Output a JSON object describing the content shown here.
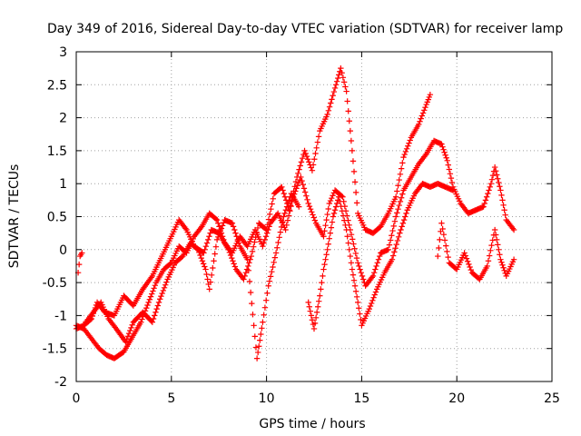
{
  "chart_data": {
    "type": "scatter",
    "title": "Day 349 of 2016, Sidereal Day-to-day VTEC variation (SDTVAR) for receiver lamp",
    "xlabel": "GPS time / hours",
    "ylabel": "SDTVAR / TECUs",
    "xlim": [
      0,
      25
    ],
    "ylim": [
      -2,
      3
    ],
    "xticks": [
      0,
      5,
      10,
      15,
      20,
      25
    ],
    "yticks": [
      -2,
      -1.5,
      -1,
      -0.5,
      0,
      0.5,
      1,
      1.5,
      2,
      2.5,
      3
    ],
    "grid": true,
    "marker": "+",
    "series_color": "#ff0000",
    "series": [
      {
        "name": "s1",
        "points": [
          [
            0.0,
            -1.2
          ],
          [
            0.4,
            -1.15
          ],
          [
            0.8,
            -1.05
          ],
          [
            1.1,
            -0.8
          ],
          [
            1.5,
            -0.95
          ],
          [
            2.0,
            -1.0
          ],
          [
            2.5,
            -0.7
          ],
          [
            3.0,
            -0.85
          ],
          [
            3.5,
            -0.6
          ],
          [
            4.0,
            -0.4
          ],
          [
            4.5,
            -0.1
          ],
          [
            5.0,
            0.2
          ],
          [
            5.4,
            0.45
          ],
          [
            5.8,
            0.3
          ],
          [
            6.2,
            0.05
          ],
          [
            6.7,
            -0.05
          ],
          [
            7.1,
            0.3
          ],
          [
            7.5,
            0.25
          ],
          [
            8.0,
            0.0
          ],
          [
            8.4,
            -0.3
          ],
          [
            8.8,
            -0.45
          ],
          [
            9.2,
            -0.1
          ],
          [
            9.6,
            0.4
          ],
          [
            10.0,
            0.3
          ],
          [
            10.4,
            0.85
          ],
          [
            10.8,
            0.95
          ],
          [
            11.2,
            0.6
          ],
          [
            11.6,
            1.1
          ],
          [
            12.0,
            1.5
          ],
          [
            12.4,
            1.2
          ],
          [
            12.8,
            1.8
          ],
          [
            13.2,
            2.05
          ],
          [
            13.6,
            2.45
          ],
          [
            13.9,
            2.75
          ],
          [
            14.2,
            2.4
          ],
          [
            14.5,
            1.5
          ],
          [
            14.8,
            0.55
          ],
          [
            15.2,
            0.3
          ],
          [
            15.6,
            0.25
          ],
          [
            16.0,
            0.35
          ],
          [
            16.4,
            0.55
          ],
          [
            16.8,
            0.8
          ],
          [
            17.2,
            1.4
          ],
          [
            17.6,
            1.7
          ],
          [
            18.0,
            1.9
          ],
          [
            18.4,
            2.2
          ],
          [
            18.6,
            2.35
          ]
        ]
      },
      {
        "name": "s2",
        "points": [
          [
            0.0,
            -1.15
          ],
          [
            0.4,
            -1.2
          ],
          [
            0.8,
            -1.35
          ],
          [
            1.2,
            -1.5
          ],
          [
            1.6,
            -1.6
          ],
          [
            2.0,
            -1.65
          ],
          [
            2.5,
            -1.55
          ],
          [
            3.0,
            -1.3
          ],
          [
            3.4,
            -1.1
          ],
          [
            3.8,
            -0.8
          ],
          [
            4.2,
            -0.5
          ],
          [
            4.6,
            -0.3
          ],
          [
            5.0,
            -0.2
          ],
          [
            5.4,
            0.05
          ],
          [
            5.8,
            -0.05
          ],
          [
            6.2,
            0.2
          ],
          [
            6.6,
            0.35
          ],
          [
            7.0,
            0.55
          ],
          [
            7.4,
            0.45
          ],
          [
            7.8,
            0.1
          ],
          [
            8.2,
            -0.05
          ],
          [
            8.6,
            0.2
          ],
          [
            9.0,
            0.05
          ],
          [
            9.4,
            0.3
          ],
          [
            9.8,
            0.05
          ],
          [
            10.2,
            0.4
          ],
          [
            10.6,
            0.55
          ],
          [
            11.0,
            0.3
          ],
          [
            11.4,
            0.8
          ],
          [
            11.8,
            1.1
          ],
          [
            12.2,
            0.7
          ],
          [
            12.6,
            0.4
          ],
          [
            13.0,
            0.2
          ],
          [
            13.3,
            0.7
          ],
          [
            13.6,
            0.9
          ],
          [
            14.0,
            0.8
          ],
          [
            14.4,
            0.3
          ],
          [
            14.8,
            -0.2
          ],
          [
            15.2,
            -0.55
          ],
          [
            15.6,
            -0.4
          ],
          [
            16.0,
            -0.05
          ],
          [
            16.4,
            0.0
          ],
          [
            16.8,
            0.5
          ],
          [
            17.2,
            0.9
          ],
          [
            17.6,
            1.1
          ],
          [
            18.0,
            1.3
          ],
          [
            18.4,
            1.45
          ],
          [
            18.8,
            1.65
          ],
          [
            19.2,
            1.6
          ],
          [
            19.5,
            1.35
          ],
          [
            19.8,
            0.95
          ],
          [
            20.2,
            0.7
          ],
          [
            20.6,
            0.55
          ],
          [
            21.0,
            0.6
          ],
          [
            21.4,
            0.65
          ],
          [
            21.8,
            1.0
          ],
          [
            22.0,
            1.25
          ],
          [
            22.3,
            0.9
          ],
          [
            22.6,
            0.45
          ],
          [
            23.0,
            0.3
          ]
        ]
      },
      {
        "name": "s3",
        "points": [
          [
            0.1,
            -0.35
          ],
          [
            0.2,
            -0.1
          ],
          [
            0.3,
            -0.05
          ]
        ]
      },
      {
        "name": "s4",
        "points": [
          [
            0.5,
            -1.1
          ],
          [
            0.9,
            -0.95
          ],
          [
            1.3,
            -0.8
          ],
          [
            1.7,
            -1.05
          ],
          [
            2.1,
            -1.2
          ],
          [
            2.6,
            -1.4
          ],
          [
            3.0,
            -1.1
          ],
          [
            3.5,
            -0.95
          ],
          [
            4.0,
            -1.1
          ],
          [
            4.4,
            -0.75
          ],
          [
            4.8,
            -0.45
          ],
          [
            5.2,
            -0.2
          ],
          [
            5.6,
            -0.1
          ],
          [
            6.0,
            0.1
          ],
          [
            6.4,
            0.0
          ],
          [
            6.8,
            -0.3
          ],
          [
            7.0,
            -0.6
          ],
          [
            7.4,
            0.15
          ],
          [
            7.8,
            0.45
          ],
          [
            8.2,
            0.4
          ],
          [
            8.6,
            0.05
          ],
          [
            9.0,
            -0.15
          ],
          [
            9.5,
            -1.65
          ],
          [
            9.8,
            -1.1
          ],
          [
            10.1,
            -0.55
          ],
          [
            10.5,
            -0.05
          ],
          [
            10.9,
            0.5
          ],
          [
            11.3,
            0.85
          ],
          [
            11.7,
            0.65
          ]
        ]
      },
      {
        "name": "s5",
        "points": [
          [
            12.2,
            -0.8
          ],
          [
            12.5,
            -1.2
          ],
          [
            12.8,
            -0.7
          ],
          [
            13.0,
            -0.3
          ],
          [
            13.2,
            0.0
          ],
          [
            13.5,
            0.5
          ],
          [
            13.8,
            0.8
          ],
          [
            14.2,
            0.3
          ],
          [
            14.5,
            -0.3
          ],
          [
            14.8,
            -0.8
          ],
          [
            15.0,
            -1.15
          ],
          [
            15.4,
            -0.9
          ],
          [
            15.8,
            -0.6
          ],
          [
            16.2,
            -0.35
          ],
          [
            16.6,
            -0.15
          ],
          [
            17.0,
            0.25
          ],
          [
            17.4,
            0.6
          ],
          [
            17.8,
            0.85
          ],
          [
            18.2,
            1.0
          ],
          [
            18.6,
            0.95
          ],
          [
            19.0,
            1.0
          ],
          [
            19.4,
            0.95
          ],
          [
            19.8,
            0.9
          ]
        ]
      },
      {
        "name": "s6",
        "points": [
          [
            19.0,
            -0.1
          ],
          [
            19.2,
            0.4
          ],
          [
            19.6,
            -0.2
          ],
          [
            20.0,
            -0.3
          ],
          [
            20.4,
            -0.05
          ],
          [
            20.8,
            -0.35
          ],
          [
            21.2,
            -0.45
          ],
          [
            21.6,
            -0.25
          ],
          [
            22.0,
            0.3
          ],
          [
            22.3,
            -0.15
          ],
          [
            22.6,
            -0.4
          ],
          [
            23.0,
            -0.15
          ]
        ]
      }
    ]
  }
}
